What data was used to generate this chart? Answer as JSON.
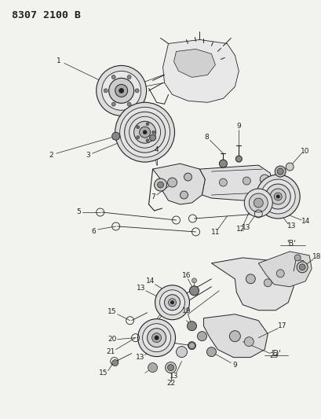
{
  "title": "8307 2100 B",
  "bg_color": "#f2f2ee",
  "fg_color": "#222222",
  "lw_main": 0.7,
  "lw_thin": 0.5,
  "label_fontsize": 6.5,
  "title_fontsize": 9.5
}
